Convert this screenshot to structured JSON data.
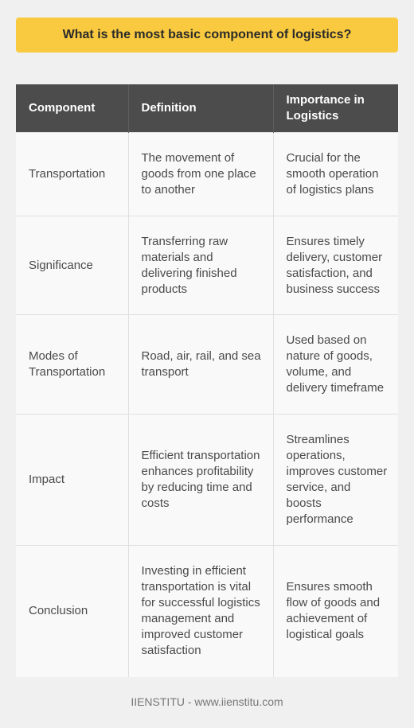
{
  "title": "What is the most basic component of logistics?",
  "table": {
    "headers": [
      "Component",
      "Definition",
      "Importance in Logistics"
    ],
    "rows": [
      [
        "Transportation",
        "The movement of goods from one place to another",
        "Crucial for the smooth operation of logistics plans"
      ],
      [
        "Significance",
        "Transferring raw materials and delivering finished products",
        "Ensures timely delivery, customer satisfaction, and business success"
      ],
      [
        "Modes of Transportation",
        "Road, air, rail, and sea transport",
        "Used based on nature of goods, volume, and delivery timeframe"
      ],
      [
        "Impact",
        "Efficient transportation enhances profitability by reducing time and costs",
        "Streamlines operations, improves customer service, and boosts performance"
      ],
      [
        "Conclusion",
        "Investing in efficient transportation is vital for successful logistics management and improved customer satisfaction",
        "Ensures smooth flow of goods and achievement of logistical goals"
      ]
    ]
  },
  "footer": "IIENSTITU - www.iienstitu.com"
}
